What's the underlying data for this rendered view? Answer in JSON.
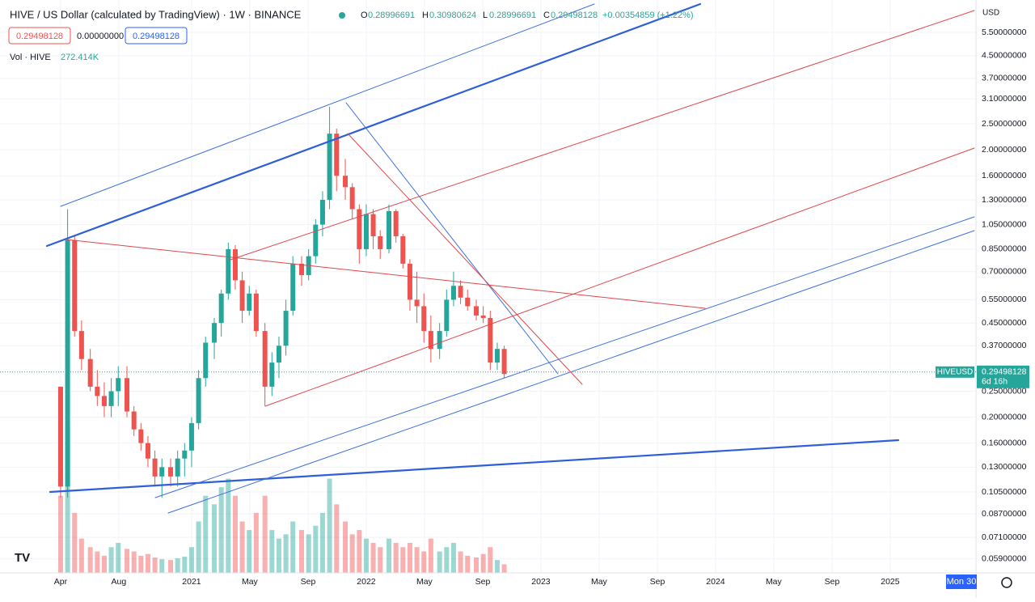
{
  "chart_data": {
    "type": "candlestick",
    "header": {
      "title": "HIVE / US Dollar (calculated by TradingView) · 1W · BINANCE",
      "o_label": "O",
      "o": "0.28996691",
      "h_label": "H",
      "h": "0.30980624",
      "l_label": "L",
      "l": "0.28996691",
      "c_label": "C",
      "c": "0.29498128",
      "change": "+0.00354859 (+1.22%)",
      "box_sell": "0.29498128",
      "box_spread": "0.00000000",
      "box_buy": "0.29498128",
      "vol_label": "Vol · HIVE",
      "vol_value": "272.414K",
      "currency": "USD",
      "symbol": "HIVEUSD",
      "countdown": "6d 16h",
      "cursor_date": "Mon 30"
    },
    "last_price": 0.29498128,
    "log_scale": true,
    "colors": {
      "up": "#26a69a",
      "down": "#ef5350"
    },
    "ylim": [
      0.0523,
      7.27
    ],
    "yticks": [
      {
        "value": 5.5,
        "label": "5.50000000"
      },
      {
        "value": 4.5,
        "label": "4.50000000"
      },
      {
        "value": 3.7,
        "label": "3.70000000"
      },
      {
        "value": 3.1,
        "label": "3.10000000"
      },
      {
        "value": 2.5,
        "label": "2.50000000"
      },
      {
        "value": 2.0,
        "label": "2.00000000"
      },
      {
        "value": 1.6,
        "label": "1.60000000"
      },
      {
        "value": 1.3,
        "label": "1.30000000"
      },
      {
        "value": 1.05,
        "label": "1.05000000"
      },
      {
        "value": 0.85,
        "label": "0.85000000"
      },
      {
        "value": 0.7,
        "label": "0.70000000"
      },
      {
        "value": 0.55,
        "label": "0.55000000"
      },
      {
        "value": 0.45,
        "label": "0.45000000"
      },
      {
        "value": 0.37,
        "label": "0.37000000"
      },
      {
        "value": 0.25,
        "label": "0.25000000"
      },
      {
        "value": 0.2,
        "label": "0.20000000"
      },
      {
        "value": 0.16,
        "label": "0.16000000"
      },
      {
        "value": 0.13,
        "label": "0.13000000"
      },
      {
        "value": 0.105,
        "label": "0.10500000"
      },
      {
        "value": 0.087,
        "label": "0.08700000"
      },
      {
        "value": 0.071,
        "label": "0.07100000"
      },
      {
        "value": 0.059,
        "label": "0.05900000"
      }
    ],
    "xlim": [
      2019.903,
      2025.491
    ],
    "xticks": [
      {
        "value": 2020.25,
        "label": "Apr"
      },
      {
        "value": 2020.583,
        "label": "Aug"
      },
      2021,
      {
        "value": 2021.333,
        "label": "May"
      },
      {
        "value": 2021.667,
        "label": "Sep"
      },
      2022,
      {
        "value": 2022.333,
        "label": "May"
      },
      {
        "value": 2022.667,
        "label": "Sep"
      },
      2023,
      {
        "value": 2023.333,
        "label": "May"
      },
      {
        "value": 2023.667,
        "label": "Sep"
      },
      2024,
      {
        "value": 2024.333,
        "label": "May"
      },
      {
        "value": 2024.667,
        "label": "Sep"
      },
      2025
    ],
    "x": [
      2020.25,
      2020.29,
      2020.33,
      2020.37,
      2020.42,
      2020.46,
      2020.5,
      2020.54,
      2020.58,
      2020.63,
      2020.67,
      2020.71,
      2020.75,
      2020.79,
      2020.83,
      2020.88,
      2020.92,
      2020.96,
      2021.0,
      2021.04,
      2021.08,
      2021.13,
      2021.17,
      2021.21,
      2021.25,
      2021.29,
      2021.33,
      2021.37,
      2021.42,
      2021.46,
      2021.5,
      2021.54,
      2021.58,
      2021.63,
      2021.67,
      2021.71,
      2021.75,
      2021.79,
      2021.83,
      2021.88,
      2021.92,
      2021.96,
      2022.0,
      2022.04,
      2022.08,
      2022.13,
      2022.17,
      2022.21,
      2022.25,
      2022.29,
      2022.33,
      2022.37,
      2022.42,
      2022.46,
      2022.5,
      2022.54,
      2022.58,
      2022.63,
      2022.67,
      2022.71,
      2022.75,
      2022.79
    ],
    "open": [
      0.26,
      0.11,
      0.92,
      0.42,
      0.33,
      0.26,
      0.24,
      0.22,
      0.25,
      0.28,
      0.21,
      0.18,
      0.16,
      0.14,
      0.12,
      0.13,
      0.12,
      0.14,
      0.15,
      0.19,
      0.28,
      0.38,
      0.45,
      0.58,
      0.85,
      0.65,
      0.5,
      0.58,
      0.42,
      0.26,
      0.32,
      0.37,
      0.5,
      0.75,
      0.68,
      0.8,
      1.05,
      1.3,
      2.3,
      1.6,
      1.45,
      1.2,
      0.85,
      1.15,
      0.95,
      0.85,
      1.18,
      0.95,
      0.75,
      0.55,
      0.52,
      0.42,
      0.36,
      0.42,
      0.55,
      0.62,
      0.56,
      0.52,
      0.48,
      0.47,
      0.32,
      0.36
    ],
    "high": [
      0.26,
      1.2,
      0.95,
      0.46,
      0.36,
      0.3,
      0.27,
      0.28,
      0.31,
      0.31,
      0.22,
      0.19,
      0.17,
      0.15,
      0.14,
      0.14,
      0.15,
      0.16,
      0.2,
      0.3,
      0.4,
      0.47,
      0.6,
      0.9,
      0.88,
      0.7,
      0.62,
      0.6,
      0.45,
      0.35,
      0.4,
      0.55,
      0.8,
      0.8,
      0.85,
      1.1,
      1.4,
      2.9,
      2.4,
      1.85,
      1.5,
      1.25,
      1.25,
      1.2,
      1.0,
      1.25,
      1.2,
      0.97,
      0.78,
      0.7,
      0.58,
      0.48,
      0.45,
      0.6,
      0.7,
      0.65,
      0.6,
      0.55,
      0.52,
      0.5,
      0.38,
      0.37
    ],
    "low": [
      0.1,
      0.1,
      0.4,
      0.3,
      0.25,
      0.22,
      0.2,
      0.2,
      0.22,
      0.2,
      0.17,
      0.15,
      0.13,
      0.11,
      0.1,
      0.11,
      0.11,
      0.12,
      0.13,
      0.18,
      0.26,
      0.33,
      0.4,
      0.55,
      0.6,
      0.45,
      0.48,
      0.4,
      0.22,
      0.24,
      0.28,
      0.34,
      0.48,
      0.62,
      0.65,
      0.75,
      0.95,
      1.2,
      1.4,
      1.3,
      1.1,
      0.75,
      0.8,
      0.85,
      0.78,
      0.82,
      0.9,
      0.72,
      0.5,
      0.45,
      0.38,
      0.32,
      0.33,
      0.4,
      0.52,
      0.53,
      0.5,
      0.46,
      0.45,
      0.3,
      0.3,
      0.28
    ],
    "close": [
      0.11,
      0.92,
      0.42,
      0.33,
      0.26,
      0.24,
      0.22,
      0.25,
      0.28,
      0.21,
      0.18,
      0.16,
      0.14,
      0.12,
      0.13,
      0.12,
      0.14,
      0.15,
      0.19,
      0.28,
      0.38,
      0.45,
      0.58,
      0.85,
      0.65,
      0.5,
      0.58,
      0.42,
      0.26,
      0.32,
      0.37,
      0.5,
      0.75,
      0.68,
      0.8,
      1.05,
      1.3,
      2.3,
      1.6,
      1.45,
      1.2,
      0.85,
      1.15,
      0.95,
      0.85,
      1.18,
      0.95,
      0.75,
      0.55,
      0.52,
      0.42,
      0.36,
      0.42,
      0.55,
      0.62,
      0.56,
      0.52,
      0.48,
      0.47,
      0.32,
      0.36,
      0.29
    ],
    "volume": [
      900,
      1700,
      700,
      400,
      300,
      250,
      200,
      300,
      350,
      280,
      250,
      200,
      220,
      180,
      160,
      150,
      170,
      190,
      300,
      600,
      900,
      800,
      1000,
      1100,
      900,
      600,
      500,
      700,
      900,
      500,
      400,
      450,
      600,
      500,
      450,
      550,
      700,
      1100,
      800,
      600,
      450,
      500,
      400,
      350,
      300,
      400,
      350,
      300,
      350,
      300,
      250,
      400,
      250,
      300,
      350,
      250,
      200,
      180,
      220,
      300,
      150,
      100
    ]
  }
}
